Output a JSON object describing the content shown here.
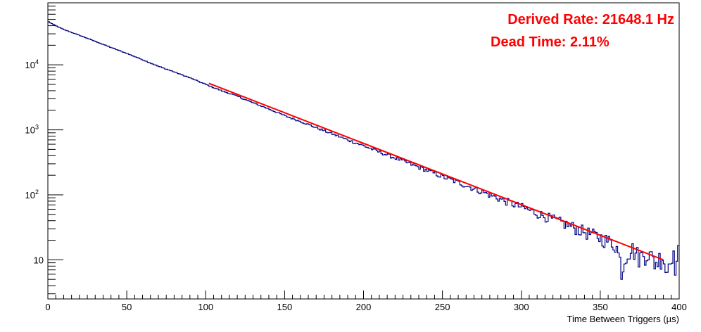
{
  "chart_data": {
    "type": "line",
    "title": "",
    "xlabel": "Time Between Triggers (µs)",
    "ylabel": "",
    "xlim": [
      0,
      400
    ],
    "ylim": [
      2.5,
      90000
    ],
    "yscale": "log",
    "grid": false,
    "x_ticks": [
      0,
      50,
      100,
      150,
      200,
      250,
      300,
      350,
      400
    ],
    "y_ticks": [
      10,
      100,
      1000,
      10000
    ],
    "y_tick_labels": [
      "10",
      "10",
      "10",
      "10"
    ],
    "y_tick_exponents": [
      "",
      "2",
      "3",
      "4"
    ],
    "colors": {
      "histogram": "#000080",
      "fit": "#ff0000",
      "annotation": "#ff0000"
    },
    "series": [
      {
        "style": "step-histogram",
        "bin_width": 1,
        "x": [
          0,
          1,
          5,
          10,
          20,
          30,
          40,
          50,
          60,
          70,
          80,
          90,
          100,
          110,
          120,
          130,
          140,
          150,
          160,
          170,
          180,
          190,
          200,
          210,
          220,
          230,
          240,
          250,
          260,
          270,
          280,
          290,
          300,
          310,
          320,
          330,
          340,
          350,
          360,
          364,
          366,
          370,
          375,
          380,
          385,
          390,
          392,
          395,
          398,
          400
        ],
        "values": [
          47000,
          45000,
          40000,
          35000,
          28500,
          23000,
          18500,
          15000,
          12000,
          9500,
          7800,
          6300,
          5000,
          4000,
          3300,
          2600,
          2100,
          1650,
          1350,
          1080,
          870,
          700,
          570,
          455,
          370,
          295,
          240,
          190,
          155,
          125,
          100,
          80,
          65,
          52,
          42,
          34,
          27,
          22,
          17,
          7,
          12,
          15,
          11,
          13,
          9,
          12,
          6,
          14,
          8,
          15
        ]
      },
      {
        "style": "fit-line",
        "x": [
          102,
          390
        ],
        "values": [
          5200,
          10
        ]
      }
    ],
    "annotations": [
      "Derived Rate: 21648.1 Hz",
      "Dead Time: 2.11%"
    ]
  }
}
